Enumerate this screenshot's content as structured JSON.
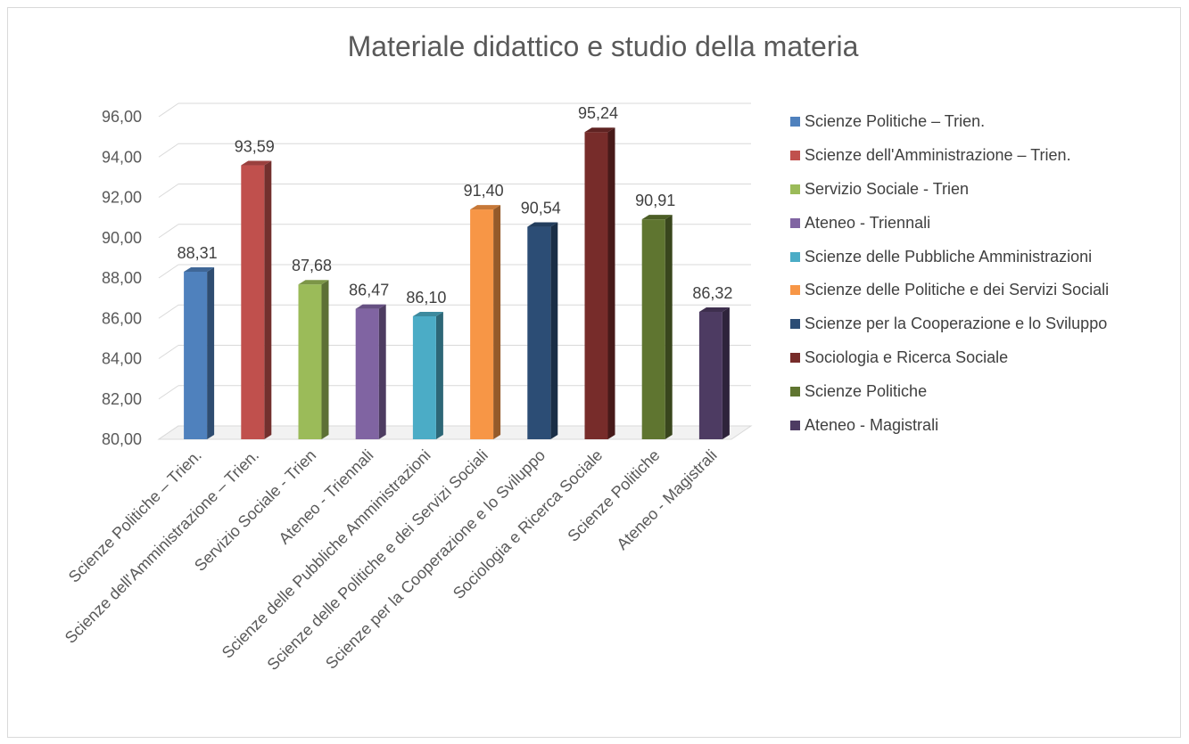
{
  "chart_data": {
    "type": "bar",
    "title": "Materiale didattico e studio della materia",
    "categories": [
      "Scienze Politiche – Trien.",
      "Scienze dell'Amministrazione – Trien.",
      "Servizio Sociale - Trien",
      "Ateneo - Triennali",
      "Scienze delle Pubbliche Amministrazioni",
      "Scienze delle Politiche e dei Servizi Sociali",
      "Scienze per la Cooperazione e lo Sviluppo",
      "Sociologia e Ricerca Sociale",
      "Scienze Politiche",
      "Ateneo - Magistrali"
    ],
    "values": [
      88.31,
      93.59,
      87.68,
      86.47,
      86.1,
      91.4,
      90.54,
      95.24,
      90.91,
      86.32
    ],
    "value_labels": [
      "88,31",
      "93,59",
      "87,68",
      "86,47",
      "86,10",
      "91,40",
      "90,54",
      "95,24",
      "90,91",
      "86,32"
    ],
    "colors": [
      "#4f81bd",
      "#c0504d",
      "#9bbb59",
      "#8064a2",
      "#4bacc6",
      "#f79646",
      "#2c4d75",
      "#772c2a",
      "#5f7530",
      "#4d3b62"
    ],
    "ylim": [
      80,
      96
    ],
    "yticks": [
      80,
      82,
      84,
      86,
      88,
      90,
      92,
      94,
      96
    ],
    "ytick_labels": [
      "80,00",
      "82,00",
      "84,00",
      "86,00",
      "88,00",
      "90,00",
      "92,00",
      "94,00",
      "96,00"
    ],
    "xlabel": "",
    "ylabel": "",
    "grid": true,
    "legend_position": "right",
    "style": "3d-column"
  }
}
